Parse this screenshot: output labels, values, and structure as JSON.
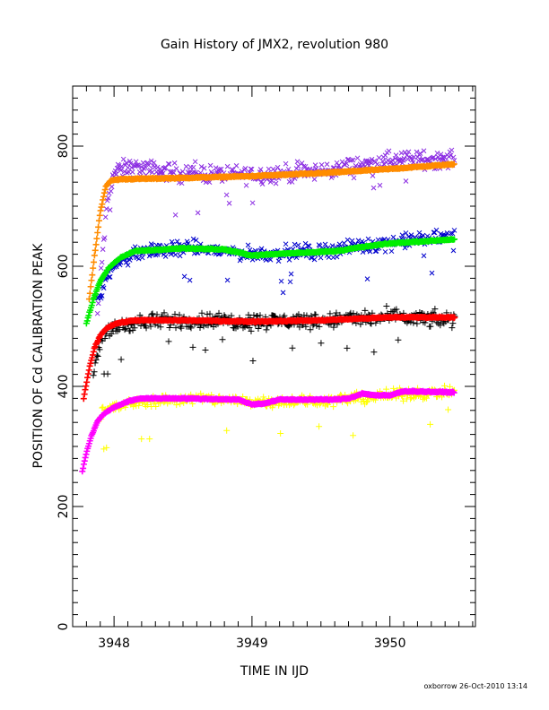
{
  "chart_data": {
    "type": "scatter",
    "title": "Gain History of JMX2, revolution 980",
    "xlabel": "TIME IN IJD",
    "ylabel": "POSITION OF Cd CALIBRATION PEAK",
    "xlim": [
      3947.7,
      3950.62
    ],
    "ylim": [
      0,
      900
    ],
    "x_ticks": [
      3948,
      3949,
      3950
    ],
    "y_ticks": [
      0,
      200,
      400,
      600,
      800
    ],
    "grid": false,
    "footer": "oxborrow 26-Oct-2010 13:14",
    "series": [
      {
        "marker": "x",
        "color": "#8a2be2",
        "x_start": 3947.88,
        "x_end": 3950.47,
        "trend": [
          [
            3947.88,
            520
          ],
          [
            3947.92,
            630
          ],
          [
            3947.96,
            720
          ],
          [
            3948.0,
            755
          ],
          [
            3948.1,
            765
          ],
          [
            3948.5,
            755
          ],
          [
            3949.0,
            752
          ],
          [
            3949.5,
            758
          ],
          [
            3950.0,
            775
          ],
          [
            3950.47,
            780
          ]
        ],
        "scatter": 22
      },
      {
        "marker": "+",
        "color": "#ff8c00",
        "trend": [
          [
            3947.82,
            545
          ],
          [
            3947.86,
            620
          ],
          [
            3947.9,
            690
          ],
          [
            3947.94,
            733
          ],
          [
            3947.98,
            743
          ],
          [
            3948.05,
            745
          ],
          [
            3948.5,
            747
          ],
          [
            3949.0,
            750
          ],
          [
            3949.5,
            755
          ],
          [
            3950.0,
            762
          ],
          [
            3950.47,
            770
          ]
        ]
      },
      {
        "marker": "x",
        "color": "#0000cd",
        "x_start": 3947.88,
        "x_end": 3950.47,
        "trend": [
          [
            3947.88,
            545
          ],
          [
            3947.95,
            585
          ],
          [
            3948.05,
            610
          ],
          [
            3948.2,
            625
          ],
          [
            3948.6,
            630
          ],
          [
            3949.0,
            620
          ],
          [
            3949.5,
            625
          ],
          [
            3950.0,
            640
          ],
          [
            3950.47,
            650
          ]
        ],
        "scatter": 18
      },
      {
        "marker": "+",
        "color": "#00ee00",
        "trend": [
          [
            3947.8,
            505
          ],
          [
            3947.85,
            545
          ],
          [
            3947.9,
            575
          ],
          [
            3947.96,
            597
          ],
          [
            3948.05,
            615
          ],
          [
            3948.15,
            625
          ],
          [
            3948.5,
            630
          ],
          [
            3948.8,
            628
          ],
          [
            3949.0,
            618
          ],
          [
            3949.3,
            622
          ],
          [
            3949.6,
            625
          ],
          [
            3949.8,
            632
          ],
          [
            3950.0,
            638
          ],
          [
            3950.47,
            645
          ]
        ]
      },
      {
        "marker": "+",
        "color": "#000000",
        "x_start": 3947.85,
        "x_end": 3950.47,
        "trend": [
          [
            3947.85,
            420
          ],
          [
            3947.9,
            470
          ],
          [
            3947.97,
            495
          ],
          [
            3948.1,
            505
          ],
          [
            3948.5,
            510
          ],
          [
            3949.0,
            508
          ],
          [
            3949.5,
            510
          ],
          [
            3950.0,
            515
          ],
          [
            3950.47,
            510
          ]
        ],
        "scatter": 20
      },
      {
        "marker": "+",
        "color": "#ff0000",
        "trend": [
          [
            3947.78,
            380
          ],
          [
            3947.82,
            430
          ],
          [
            3947.86,
            465
          ],
          [
            3947.9,
            485
          ],
          [
            3947.95,
            498
          ],
          [
            3948.02,
            505
          ],
          [
            3948.15,
            510
          ],
          [
            3948.5,
            510
          ],
          [
            3949.0,
            508
          ],
          [
            3949.5,
            510
          ],
          [
            3950.0,
            515
          ],
          [
            3950.47,
            515
          ]
        ]
      },
      {
        "marker": "+",
        "color": "#ffff00",
        "x_start": 3947.9,
        "x_end": 3950.47,
        "trend": [
          [
            3947.9,
            355
          ],
          [
            3948.0,
            365
          ],
          [
            3948.2,
            375
          ],
          [
            3948.6,
            380
          ],
          [
            3949.0,
            375
          ],
          [
            3949.5,
            375
          ],
          [
            3950.0,
            385
          ],
          [
            3950.47,
            392
          ]
        ],
        "scatter": 14
      },
      {
        "marker": "+",
        "color": "#ff00ff",
        "trend": [
          [
            3947.77,
            258
          ],
          [
            3947.8,
            290
          ],
          [
            3947.84,
            320
          ],
          [
            3947.88,
            342
          ],
          [
            3947.93,
            355
          ],
          [
            3948.0,
            365
          ],
          [
            3948.1,
            375
          ],
          [
            3948.2,
            380
          ],
          [
            3948.5,
            380
          ],
          [
            3948.9,
            378
          ],
          [
            3949.0,
            370
          ],
          [
            3949.1,
            372
          ],
          [
            3949.2,
            378
          ],
          [
            3949.6,
            378
          ],
          [
            3949.7,
            380
          ],
          [
            3949.8,
            388
          ],
          [
            3949.9,
            385
          ],
          [
            3950.0,
            385
          ],
          [
            3950.1,
            392
          ],
          [
            3950.47,
            390
          ]
        ]
      }
    ]
  }
}
